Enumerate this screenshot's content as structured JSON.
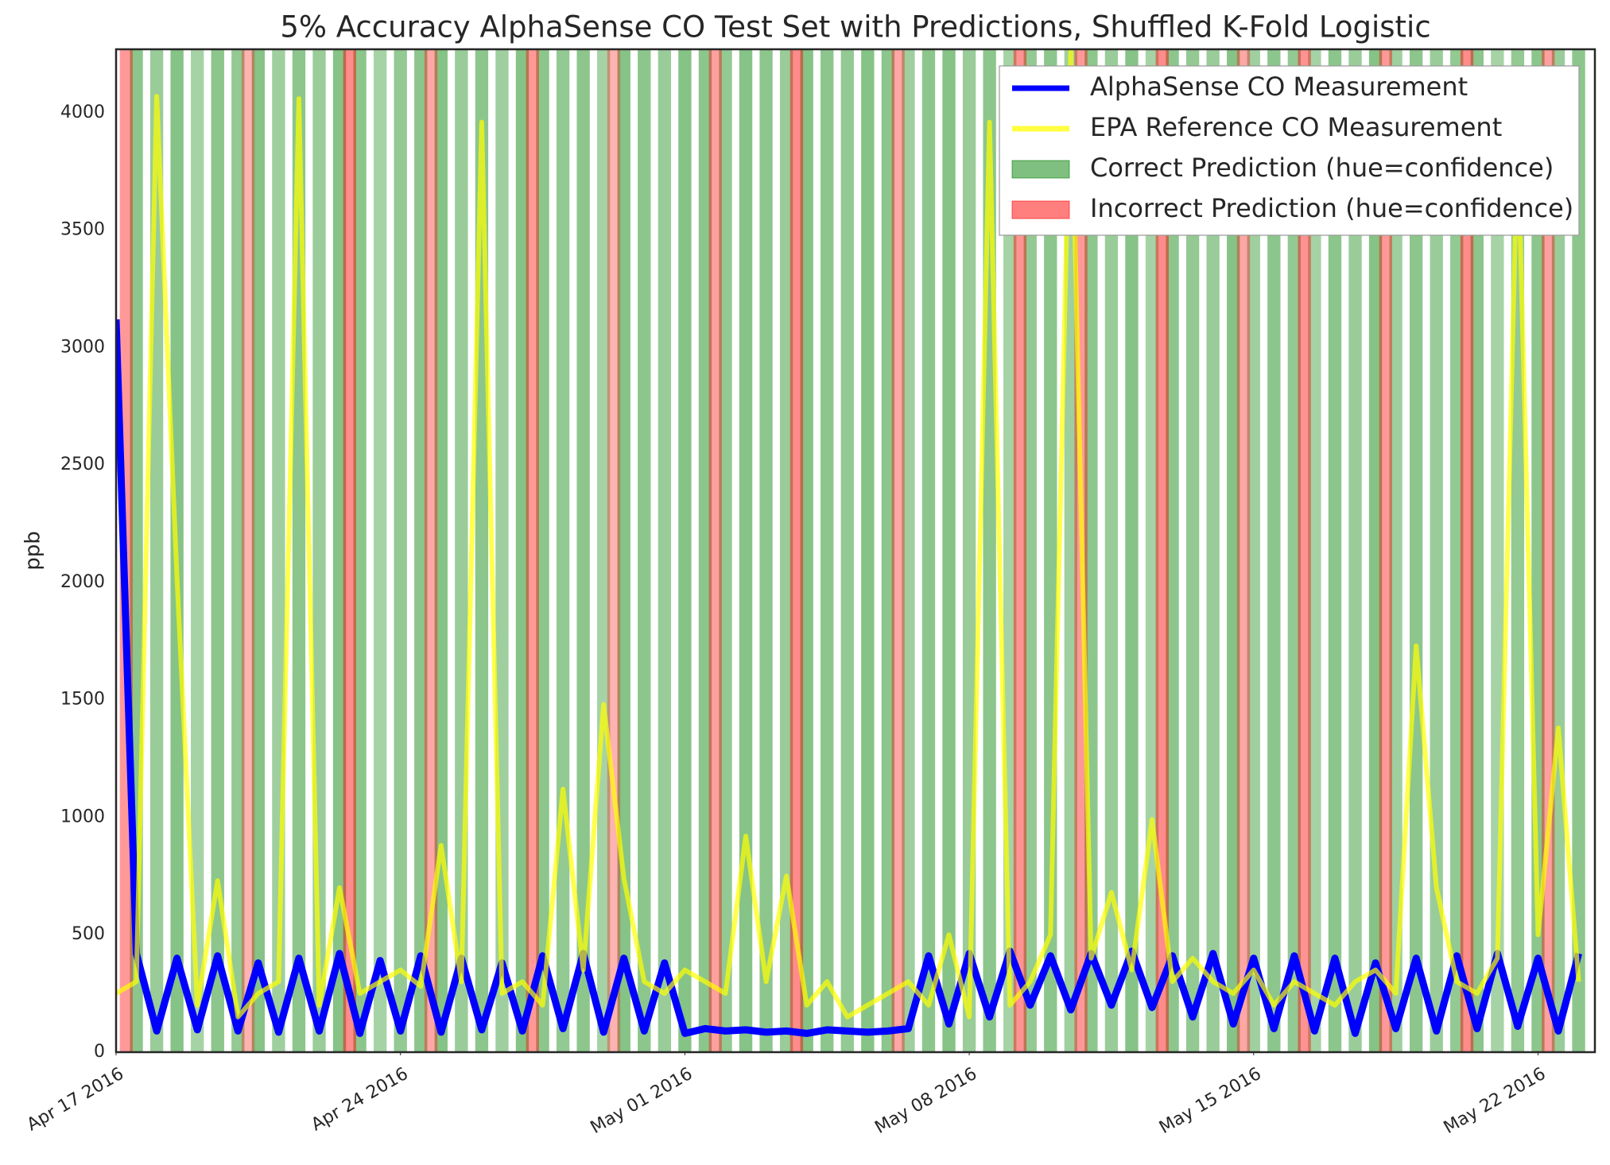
{
  "chart_data": {
    "type": "line",
    "title": "5% Accuracy AlphaSense CO Test Set with Predictions, Shuffled K-Fold Logistic",
    "y_label": "ppb",
    "xlim": [
      736071,
      736107.4
    ],
    "ylim": [
      0,
      4270
    ],
    "xticks": [
      {
        "value": 736071,
        "label": "Apr 17 2016"
      },
      {
        "value": 736078,
        "label": "Apr 24 2016"
      },
      {
        "value": 736085,
        "label": "May 01 2016"
      },
      {
        "value": 736092,
        "label": "May 08 2016"
      },
      {
        "value": 736099,
        "label": "May 15 2016"
      },
      {
        "value": 736106,
        "label": "May 22 2016"
      }
    ],
    "yticks": [
      0,
      500,
      1000,
      1500,
      2000,
      2500,
      3000,
      3500,
      4000
    ],
    "grid": false,
    "legend": "upper right",
    "series": [
      {
        "name": "AlphaSense CO Measurement",
        "type": "line",
        "color": "#0000ff",
        "x": [
          736071,
          736071.5,
          736072,
          736072.5,
          736073,
          736073.5,
          736074,
          736074.5,
          736075,
          736075.5,
          736076,
          736076.5,
          736077,
          736077.5,
          736078,
          736078.5,
          736079,
          736079.5,
          736080,
          736080.5,
          736081,
          736081.5,
          736082,
          736082.5,
          736083,
          736083.5,
          736084,
          736084.5,
          736085,
          736085.5,
          736086,
          736086.5,
          736087,
          736087.5,
          736088,
          736088.5,
          736089,
          736089.5,
          736090,
          736090.5,
          736091,
          736091.5,
          736092,
          736092.5,
          736093,
          736093.5,
          736094,
          736094.5,
          736095,
          736095.5,
          736096,
          736096.5,
          736097,
          736097.5,
          736098,
          736098.5,
          736099,
          736099.5,
          736100,
          736100.5,
          736101,
          736101.5,
          736102,
          736102.5,
          736103,
          736103.5,
          736104,
          736104.5,
          736105,
          736105.5,
          736106,
          736106.5,
          736107
        ],
        "values": [
          3120,
          420,
          90,
          400,
          95,
          410,
          90,
          380,
          85,
          400,
          90,
          420,
          80,
          390,
          90,
          410,
          85,
          400,
          95,
          380,
          90,
          410,
          100,
          420,
          85,
          400,
          90,
          380,
          80,
          100,
          90,
          95,
          85,
          90,
          80,
          95,
          90,
          85,
          90,
          100,
          410,
          120,
          420,
          150,
          430,
          200,
          410,
          180,
          420,
          200,
          430,
          190,
          410,
          150,
          420,
          120,
          400,
          100,
          410,
          90,
          400,
          80,
          380,
          100,
          400,
          90,
          410,
          100,
          420,
          110,
          400,
          90,
          420
        ]
      },
      {
        "name": "EPA Reference CO Measurement",
        "type": "line",
        "color": "#ffff00",
        "x": [
          736071,
          736071.5,
          736072,
          736072.5,
          736073,
          736073.5,
          736074,
          736074.5,
          736075,
          736075.5,
          736076,
          736076.5,
          736077,
          736077.5,
          736078,
          736078.5,
          736079,
          736079.5,
          736080,
          736080.5,
          736081,
          736081.5,
          736082,
          736082.5,
          736083,
          736083.5,
          736084,
          736084.5,
          736085,
          736085.5,
          736086,
          736086.5,
          736087,
          736087.5,
          736088,
          736088.5,
          736089,
          736089.5,
          736090,
          736090.5,
          736091,
          736091.5,
          736092,
          736092.5,
          736093,
          736093.5,
          736094,
          736094.5,
          736095,
          736095.5,
          736096,
          736096.5,
          736097,
          736097.5,
          736098,
          736098.5,
          736099,
          736099.5,
          736100,
          736100.5,
          736101,
          736101.5,
          736102,
          736102.5,
          736103,
          736103.5,
          736104,
          736104.5,
          736105,
          736105.5,
          736106,
          736106.5,
          736107
        ],
        "values": [
          250,
          300,
          4070,
          2020,
          200,
          730,
          150,
          250,
          300,
          4060,
          200,
          700,
          250,
          300,
          350,
          280,
          880,
          300,
          3960,
          250,
          300,
          200,
          1120,
          350,
          1480,
          740,
          300,
          250,
          350,
          300,
          250,
          920,
          300,
          750,
          200,
          300,
          150,
          200,
          250,
          300,
          200,
          500,
          150,
          3960,
          200,
          300,
          500,
          4270,
          400,
          680,
          350,
          990,
          300,
          400,
          300,
          250,
          350,
          200,
          300,
          250,
          200,
          300,
          350,
          250,
          1730,
          700,
          300,
          250,
          400,
          3900,
          500,
          1380,
          300
        ]
      },
      {
        "name": "Correct Prediction (hue=confidence)",
        "type": "span",
        "color": "#008000",
        "x": [
          736071.5,
          736072,
          736072.5,
          736073,
          736073.5,
          736074,
          736074.5,
          736075,
          736075.5,
          736076,
          736076.5,
          736077,
          736077.5,
          736078,
          736078.5,
          736079,
          736079.5,
          736080,
          736080.5,
          736081,
          736081.5,
          736082,
          736082.5,
          736083,
          736083.5,
          736084,
          736084.5,
          736085,
          736085.5,
          736086,
          736086.5,
          736087,
          736087.5,
          736088,
          736088.5,
          736089,
          736089.5,
          736090,
          736090.5,
          736091,
          736091.5,
          736092,
          736092.5,
          736093,
          736093.5,
          736094,
          736094.5,
          736095,
          736095.5,
          736096,
          736096.5,
          736097,
          736097.5,
          736098,
          736098.5,
          736099,
          736099.5,
          736100,
          736100.5,
          736101,
          736101.5,
          736102,
          736102.5,
          736103,
          736103.5,
          736104,
          736104.5,
          736105,
          736105.5,
          736106,
          736106.5,
          736107
        ],
        "values": [
          0.9,
          0.8,
          0.95,
          0.7,
          0.9,
          0.85,
          0.95,
          0.75,
          0.9,
          0.8,
          0.95,
          0.9,
          0.7,
          0.85,
          0.9,
          0.95,
          0.8,
          0.9,
          0.75,
          0.95,
          0.9,
          0.85,
          0.9,
          0.7,
          0.95,
          0.9,
          0.8,
          0.95,
          0.9,
          0.85,
          0.95,
          0.9,
          0.8,
          0.95,
          0.9,
          0.85,
          0.95,
          0.9,
          0.75,
          0.9,
          0.95,
          0.8,
          0.9,
          0.7,
          0.85,
          0.9,
          0.75,
          0.9,
          0.8,
          0.95,
          0.7,
          0.9,
          0.85,
          0.8,
          0.95,
          0.75,
          0.9,
          0.85,
          0.7,
          0.9,
          0.8,
          0.95,
          0.75,
          0.9,
          0.8,
          0.85,
          0.9,
          0.7,
          0.85,
          0.9,
          0.8,
          0.9
        ]
      },
      {
        "name": "Incorrect Prediction (hue=confidence)",
        "type": "span",
        "color": "#ff0000",
        "x": [
          736071.25,
          736074.25,
          736076.75,
          736078.75,
          736081.25,
          736083.25,
          736085.75,
          736087.75,
          736090.25,
          736093.25,
          736094.75,
          736096.75,
          736098.75,
          736100.25,
          736102.25,
          736104.25,
          736106.25
        ],
        "values": [
          0.8,
          0.6,
          0.9,
          0.7,
          0.8,
          0.6,
          0.75,
          0.9,
          0.7,
          0.85,
          0.8,
          0.9,
          0.7,
          0.85,
          0.8,
          0.9,
          0.75
        ]
      }
    ]
  }
}
